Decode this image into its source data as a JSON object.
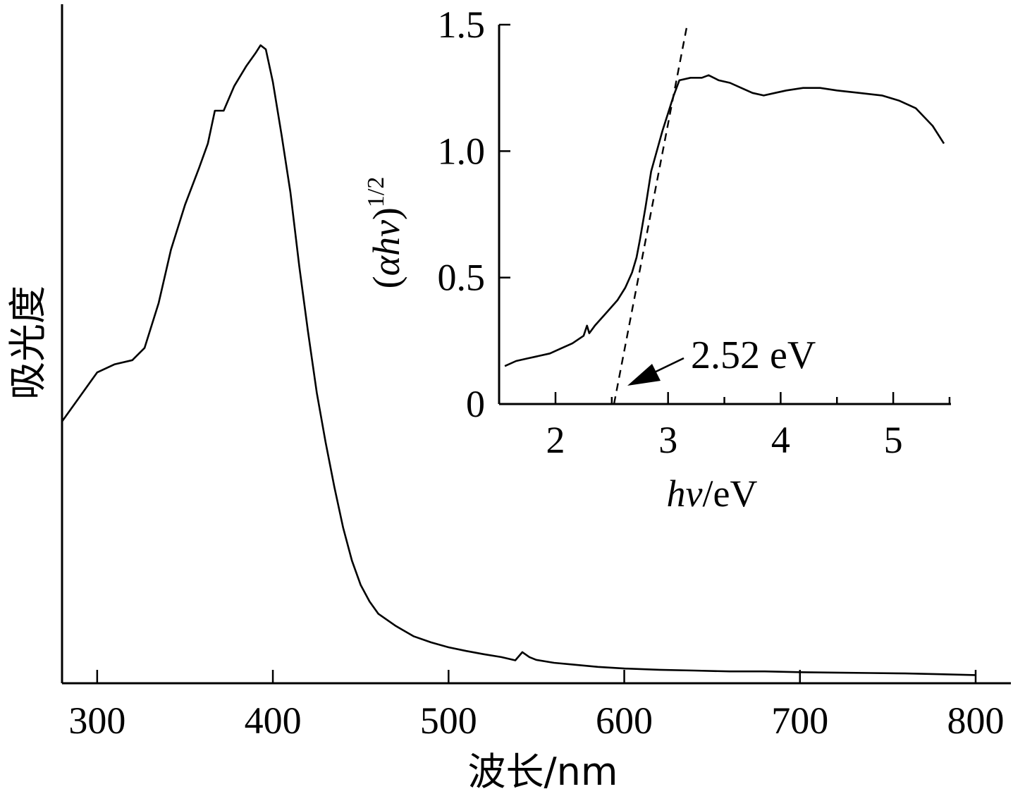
{
  "chart_data": [
    {
      "type": "line",
      "title": "",
      "xlabel": "波长/nm",
      "ylabel": "吸光度",
      "xlim": [
        280,
        820
      ],
      "ylim": [
        0,
        1.55
      ],
      "x_ticks": [
        "300",
        "400",
        "500",
        "600",
        "700",
        "800"
      ],
      "y_ticks_labeled": false,
      "grid": false,
      "series": [
        {
          "x": [
            280,
            290,
            300,
            310,
            320,
            327,
            335,
            342,
            350,
            358,
            363,
            367,
            372,
            378,
            385,
            390,
            393,
            396,
            400,
            405,
            410,
            415,
            420,
            425,
            430,
            435,
            440,
            445,
            450,
            455,
            460,
            470,
            480,
            490,
            500,
            510,
            520,
            530,
            538,
            542,
            546,
            550,
            560,
            570,
            585,
            600,
            620,
            640,
            660,
            680,
            700,
            720,
            740,
            760,
            780,
            800
          ],
          "y": [
            0.64,
            0.7,
            0.76,
            0.78,
            0.79,
            0.82,
            0.93,
            1.06,
            1.17,
            1.26,
            1.32,
            1.4,
            1.4,
            1.46,
            1.51,
            1.54,
            1.56,
            1.55,
            1.47,
            1.34,
            1.2,
            1.02,
            0.86,
            0.71,
            0.59,
            0.48,
            0.38,
            0.3,
            0.24,
            0.2,
            0.17,
            0.14,
            0.115,
            0.1,
            0.088,
            0.079,
            0.071,
            0.064,
            0.056,
            0.076,
            0.064,
            0.057,
            0.05,
            0.046,
            0.04,
            0.036,
            0.033,
            0.031,
            0.029,
            0.029,
            0.027,
            0.026,
            0.025,
            0.024,
            0.022,
            0.02
          ]
        }
      ]
    },
    {
      "type": "line",
      "title": "",
      "xlabel": "hv/eV",
      "ylabel": "(αhv)^1/2",
      "xlim": [
        1.5,
        5.5
      ],
      "ylim": [
        0,
        1.5
      ],
      "x_ticks": [
        "2",
        "3",
        "4",
        "5"
      ],
      "y_ticks": [
        "0",
        "0.5",
        "1.0",
        "1.5"
      ],
      "grid": false,
      "series": [
        {
          "x": [
            1.55,
            1.65,
            1.75,
            1.85,
            1.95,
            2.05,
            2.15,
            2.25,
            2.28,
            2.3,
            2.35,
            2.45,
            2.55,
            2.62,
            2.68,
            2.72,
            2.75,
            2.8,
            2.85,
            2.9,
            2.95,
            3.0,
            3.05,
            3.1,
            3.2,
            3.3,
            3.36,
            3.45,
            3.55,
            3.65,
            3.75,
            3.85,
            3.95,
            4.05,
            4.2,
            4.35,
            4.5,
            4.7,
            4.9,
            5.05,
            5.2,
            5.35,
            5.45
          ],
          "y": [
            0.15,
            0.17,
            0.18,
            0.19,
            0.2,
            0.22,
            0.24,
            0.27,
            0.31,
            0.28,
            0.31,
            0.36,
            0.41,
            0.46,
            0.52,
            0.58,
            0.65,
            0.78,
            0.92,
            1.0,
            1.08,
            1.15,
            1.22,
            1.28,
            1.29,
            1.29,
            1.3,
            1.28,
            1.27,
            1.25,
            1.23,
            1.22,
            1.23,
            1.24,
            1.25,
            1.25,
            1.24,
            1.23,
            1.22,
            1.2,
            1.17,
            1.1,
            1.03
          ]
        }
      ],
      "fit_line": {
        "x": [
          2.52,
          3.17
        ],
        "y": [
          0,
          1.5
        ]
      },
      "annotation": "2.52 eV"
    }
  ]
}
